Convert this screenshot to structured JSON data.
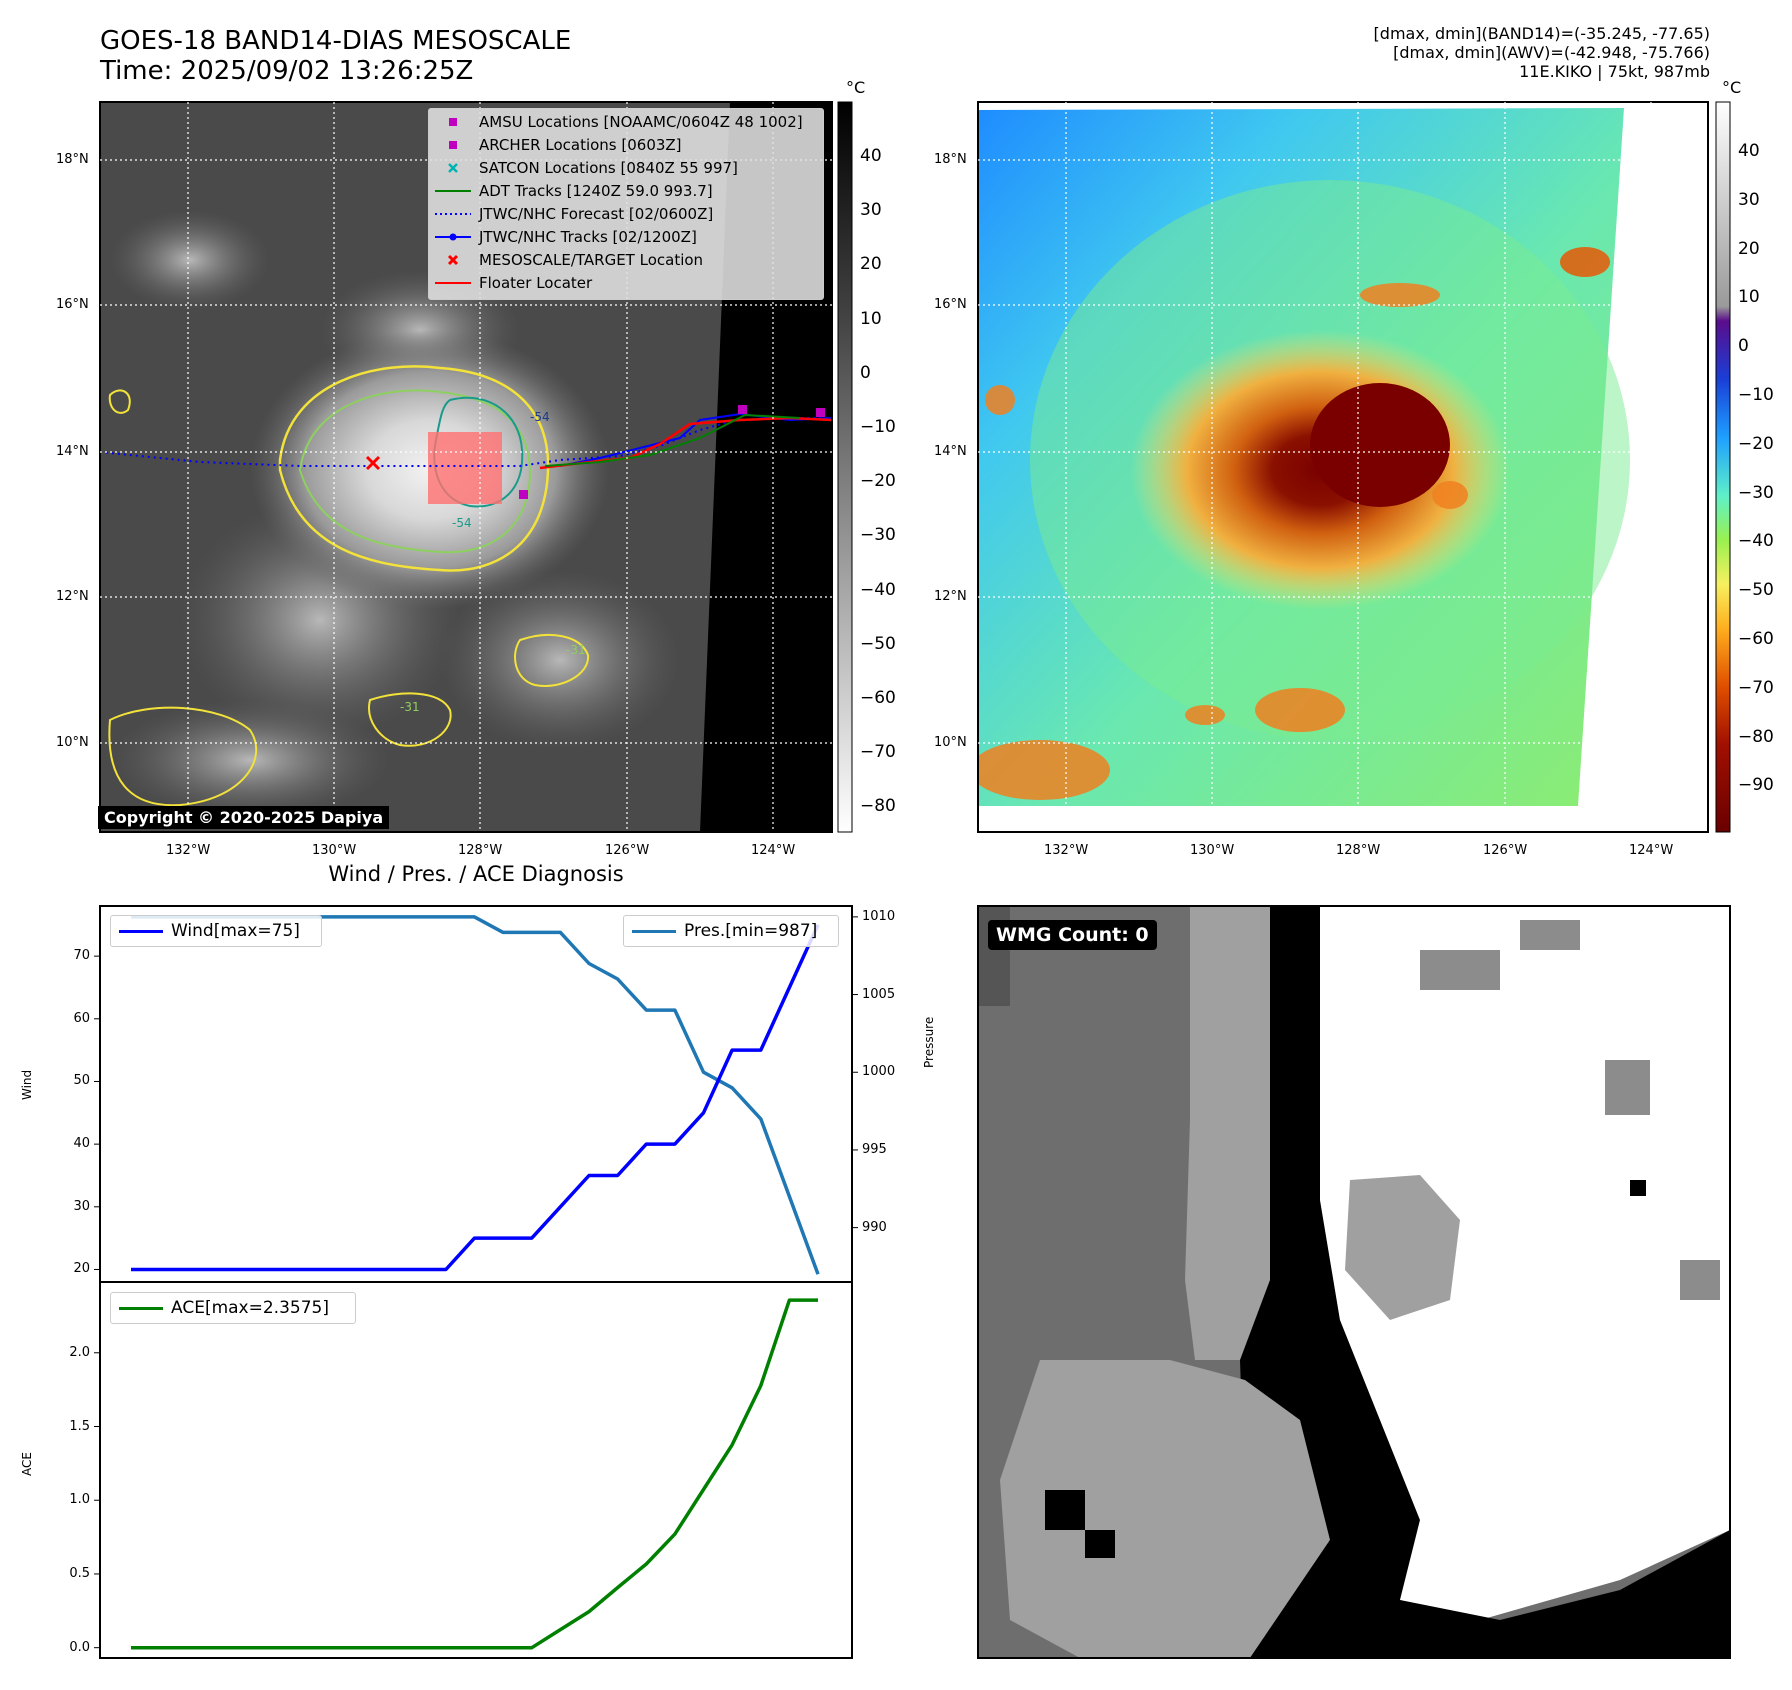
{
  "header": {
    "title_line1": "GOES-18 BAND14-DIAS MESOSCALE",
    "title_line2": "Time: 2025/09/02 13:26:25Z",
    "stats_line1": "[dmax, dmin](BAND14)=(-35.245, -77.65)",
    "stats_line2": "[dmax, dmin](AWV)=(-42.948, -75.766)",
    "stats_line3": "11E.KIKO | 75kt, 987mb"
  },
  "map_axes": {
    "lat_ticks": [
      "18°N",
      "16°N",
      "14°N",
      "12°N",
      "10°N"
    ],
    "lon_ticks": [
      "132°W",
      "130°W",
      "128°W",
      "126°W",
      "124°W"
    ]
  },
  "colorbar_left": {
    "unit": "°C",
    "ticks": [
      "40",
      "30",
      "20",
      "10",
      "0",
      "−10",
      "−20",
      "−30",
      "−40",
      "−50",
      "−60",
      "−70",
      "−80"
    ]
  },
  "colorbar_right": {
    "unit": "°C",
    "ticks": [
      "40",
      "30",
      "20",
      "10",
      "0",
      "−10",
      "−20",
      "−30",
      "−40",
      "−50",
      "−60",
      "−70",
      "−80",
      "−90"
    ]
  },
  "legend": {
    "items": [
      {
        "label": "AMSU Locations [NOAAMC/0604Z 48 1002]",
        "color": "#c000c0",
        "kind": "square"
      },
      {
        "label": "ARCHER Locations [0603Z]",
        "color": "#c000c0",
        "kind": "square"
      },
      {
        "label": "SATCON Locations [0840Z 55 997]",
        "color": "#00b3b3",
        "kind": "x"
      },
      {
        "label": "ADT Tracks [1240Z 59.0 993.7]",
        "color": "#008000",
        "kind": "line"
      },
      {
        "label": "JTWC/NHC Forecast [02/0600Z]",
        "color": "#0000ff",
        "kind": "dotted"
      },
      {
        "label": "JTWC/NHC Tracks [02/1200Z]",
        "color": "#0000ff",
        "kind": "dotline"
      },
      {
        "label": "MESOSCALE/TARGET Location",
        "color": "#ff0000",
        "kind": "x"
      },
      {
        "label": "Floater Locater",
        "color": "#ff0000",
        "kind": "line"
      }
    ]
  },
  "copyright": "Copyright © 2020-2025 Dapiya",
  "contour_labels": [
    "-54",
    "-31",
    "-31",
    "-54"
  ],
  "wmg_label": "WMG Count: 0",
  "chart_data": [
    {
      "type": "line",
      "title": "Wind / Pres. / ACE Diagnosis",
      "ylabel": "Wind",
      "y2label": "Pressure",
      "ylim": [
        18,
        78
      ],
      "y2lim": [
        986.5,
        1010.7
      ],
      "yticks": [
        20,
        30,
        40,
        50,
        60,
        70
      ],
      "y2ticks": [
        990,
        995,
        1000,
        1005,
        1010
      ],
      "series": [
        {
          "name": "Wind[max=75]",
          "color": "#0000ff",
          "axis": "left",
          "values": [
            20,
            20,
            20,
            20,
            20,
            20,
            20,
            20,
            20,
            20,
            20,
            20,
            25,
            25,
            25,
            30,
            35,
            35,
            40,
            40,
            45,
            55,
            55,
            65,
            75
          ]
        },
        {
          "name": "Pres.[min=987]",
          "color": "#1f77b4",
          "axis": "right",
          "values": [
            1010,
            1010,
            1010,
            1010,
            1010,
            1010,
            1010,
            1010,
            1010,
            1010,
            1010,
            1010,
            1010,
            1009,
            1009,
            1009,
            1007,
            1006,
            1004,
            1004,
            1000,
            999,
            997,
            992,
            987
          ]
        }
      ]
    },
    {
      "type": "line",
      "ylabel": "ACE",
      "ylim": [
        -0.07,
        2.48
      ],
      "yticks": [
        0.0,
        0.5,
        1.0,
        1.5,
        2.0
      ],
      "ytick_labels": [
        "0.0",
        "0.5",
        "1.0",
        "1.5",
        "2.0"
      ],
      "series": [
        {
          "name": "ACE[max=2.3575]",
          "color": "#008000",
          "values": [
            0,
            0,
            0,
            0,
            0,
            0,
            0,
            0,
            0,
            0,
            0,
            0,
            0,
            0,
            0,
            0.1225,
            0.245,
            0.4075,
            0.5675,
            0.77,
            1.0725,
            1.375,
            1.7775,
            2.3575,
            2.3575
          ]
        }
      ]
    }
  ]
}
